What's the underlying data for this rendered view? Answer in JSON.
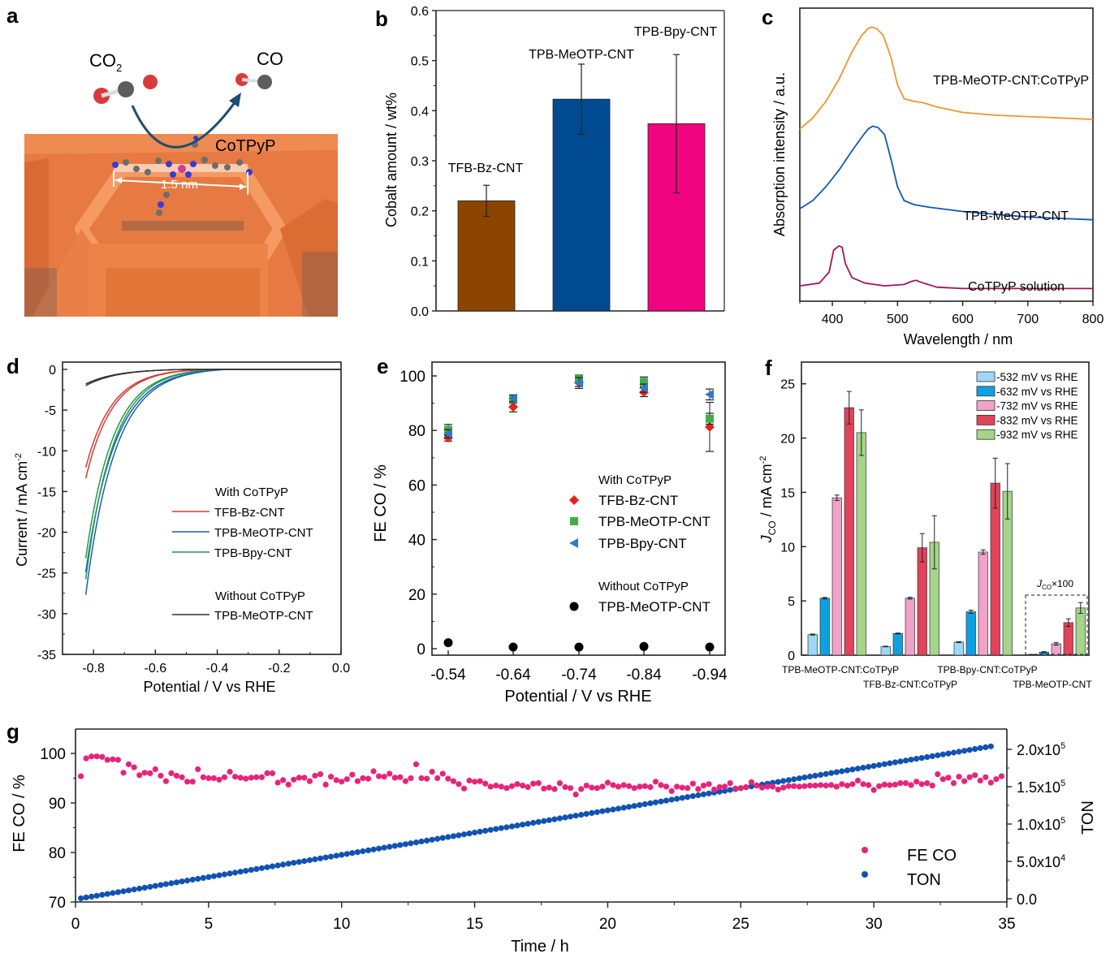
{
  "panel_letters": {
    "a": "a",
    "b": "b",
    "c": "c",
    "d": "d",
    "e": "e",
    "f": "f",
    "g": "g"
  },
  "illustration": {
    "reactant": "CO",
    "reactant_sub": "2",
    "product": "CO",
    "catalyst": "CoTPyP",
    "scale": "1.5 nm",
    "colors": {
      "framework": "#e8743a",
      "framework_dark": "#c9561f",
      "oxygen": "#d93b3b",
      "carbon": "#5c5c5c",
      "arrow": "#1d4e6b"
    }
  },
  "chart_data": [
    {
      "id": "b",
      "type": "bar",
      "title": "",
      "xlabel": "",
      "ylabel": "Cobalt amount / wt%",
      "ylim": [
        0,
        0.6
      ],
      "yticks": [
        "0.0",
        "0.1",
        "0.2",
        "0.3",
        "0.4",
        "0.5",
        "0.6"
      ],
      "categories": [
        "TFB-Bz-CNT",
        "TPB-MeOTP-CNT",
        "TPB-Bpy-CNT"
      ],
      "values": [
        0.22,
        0.423,
        0.374
      ],
      "errors": [
        0.031,
        0.07,
        0.138
      ],
      "colors": [
        "#8b4500",
        "#004a91",
        "#f0047f"
      ],
      "grid": false
    },
    {
      "id": "c",
      "type": "line",
      "xlabel": "Wavelength / nm",
      "ylabel": "Absorption intensity / a.u.",
      "xlim": [
        350,
        800
      ],
      "xticks": [
        "400",
        "500",
        "600",
        "700",
        "800"
      ],
      "series": [
        {
          "name": "TPB-MeOTP-CNT:CoTPyP",
          "color": "#f0952a",
          "x": [
            350,
            370,
            390,
            410,
            430,
            445,
            455,
            460,
            468,
            478,
            490,
            500,
            510,
            525,
            540,
            560,
            600,
            650,
            700,
            750,
            800
          ],
          "y": [
            0.62,
            0.66,
            0.72,
            0.8,
            0.9,
            0.96,
            0.985,
            0.99,
            0.985,
            0.96,
            0.88,
            0.78,
            0.73,
            0.72,
            0.715,
            0.7,
            0.68,
            0.67,
            0.665,
            0.66,
            0.655
          ]
        },
        {
          "name": "TPB-MeOTP-CNT",
          "color": "#1158b0",
          "x": [
            350,
            370,
            390,
            410,
            430,
            445,
            455,
            462,
            470,
            480,
            490,
            500,
            510,
            525,
            550,
            600,
            650,
            700,
            750,
            800
          ],
          "y": [
            0.33,
            0.36,
            0.41,
            0.47,
            0.54,
            0.59,
            0.62,
            0.63,
            0.625,
            0.6,
            0.51,
            0.41,
            0.36,
            0.345,
            0.335,
            0.32,
            0.31,
            0.3,
            0.295,
            0.29
          ]
        },
        {
          "name": "CoTPyP solution",
          "color": "#a3145b",
          "x": [
            350,
            380,
            395,
            402,
            410,
            415,
            420,
            430,
            450,
            480,
            510,
            520,
            528,
            540,
            560,
            600,
            700,
            800
          ],
          "y": [
            0.05,
            0.06,
            0.1,
            0.18,
            0.195,
            0.19,
            0.13,
            0.08,
            0.06,
            0.05,
            0.055,
            0.065,
            0.07,
            0.06,
            0.045,
            0.04,
            0.04,
            0.04
          ]
        }
      ],
      "annotations": [
        "TPB-MeOTP-CNT:CoTPyP",
        "TPB-MeOTP-CNT",
        "CoTPyP solution"
      ],
      "grid": false
    },
    {
      "id": "d",
      "type": "line",
      "xlabel": "Potential / V vs RHE",
      "ylabel": "Current / mA cm",
      "ylabel_sup": "-2",
      "xlim": [
        -0.9,
        0.0
      ],
      "ylim": [
        -35,
        0
      ],
      "xticks": [
        "-0.8",
        "-0.6",
        "-0.4",
        "-0.2",
        "0.0"
      ],
      "yticks": [
        "0",
        "-5",
        "-10",
        "-15",
        "-20",
        "-25",
        "-30",
        "-35"
      ],
      "legend": {
        "group1": "With CoTPyP",
        "group2": "Without CoTPyP"
      },
      "series": [
        {
          "name": "TFB-Bz-CNT",
          "group": "With CoTPyP",
          "color": "#d63a3a",
          "onset": -0.43,
          "end_current": -14.2,
          "tau": 0.085
        },
        {
          "name": "TPB-MeOTP-CNT",
          "group": "With CoTPyP",
          "color": "#1a5fb4",
          "onset": -0.37,
          "end_current": -29.2,
          "tau": 0.095
        },
        {
          "name": "TPB-Bpy-CNT",
          "group": "With CoTPyP",
          "color": "#22994a",
          "onset": -0.4,
          "end_current": -27.3,
          "tau": 0.088
        },
        {
          "name": "TPB-MeOTP-CNT",
          "group": "Without CoTPyP",
          "color": "#333333",
          "onset": -0.5,
          "end_current": -2.1,
          "tau": 0.1
        }
      ],
      "x_end": -0.83,
      "grid": false
    },
    {
      "id": "e",
      "type": "scatter",
      "xlabel": "Potential / V vs RHE",
      "ylabel": "FE CO / %",
      "ylim": [
        -5,
        105
      ],
      "yticks": [
        "0",
        "20",
        "40",
        "60",
        "80",
        "100"
      ],
      "categories": [
        "-0.54",
        "-0.64",
        "-0.74",
        "-0.84",
        "-0.94"
      ],
      "legend": {
        "group1": "With CoTPyP",
        "group2": "Without CoTPyP"
      },
      "series": [
        {
          "name": "TFB-Bz-CNT",
          "group": "With CoTPyP",
          "marker": "diamond",
          "color": "#e8231f",
          "values": [
            77.3,
            88.6,
            97.6,
            94.0,
            81.3
          ],
          "errors": [
            1.2,
            1.8,
            1.5,
            1.6,
            9.0
          ]
        },
        {
          "name": "TPB-MeOTP-CNT",
          "group": "With CoTPyP",
          "marker": "square",
          "color": "#3fae49",
          "values": [
            80.2,
            91.5,
            98.8,
            97.8,
            84.3
          ],
          "errors": [
            2.0,
            1.5,
            1.5,
            1.8,
            2.0
          ]
        },
        {
          "name": "TPB-Bpy-CNT",
          "group": "With CoTPyP",
          "marker": "triangle-left",
          "color": "#2e7ac9",
          "values": [
            78.8,
            91.8,
            97.4,
            95.5,
            93.2
          ],
          "errors": [
            1.5,
            1.2,
            2.0,
            1.5,
            2.0
          ]
        },
        {
          "name": "TPB-MeOTP-CNT",
          "group": "Without CoTPyP",
          "marker": "circle",
          "color": "#000000",
          "values": [
            2.2,
            0.6,
            0.6,
            0.8,
            0.6
          ],
          "errors": [
            0,
            0,
            0,
            0,
            0
          ]
        }
      ],
      "grid": false
    },
    {
      "id": "f",
      "type": "bar",
      "ylabel": "J",
      "ylabel_sub": "CO",
      "ylabel_rest": " / mA cm",
      "ylabel_sup": "-2",
      "ylim": [
        0,
        27
      ],
      "yticks": [
        "0",
        "5",
        "10",
        "15",
        "20",
        "25"
      ],
      "categories": [
        "TPB-MeOTP-CNT:CoTPyP",
        "TFB-Bz-CNT:CoTPyP",
        "TPB-Bpy-CNT:CoTPyP",
        "TPB-MeOTP-CNT"
      ],
      "series": [
        {
          "name": "-532 mV vs RHE",
          "color": "#9fd8f5",
          "values": [
            1.9,
            0.8,
            1.2,
            0.05
          ],
          "errors": [
            0.05,
            0.03,
            0.04,
            0.02
          ]
        },
        {
          "name": "-632 mV vs RHE",
          "color": "#0fa0e0",
          "values": [
            5.25,
            2.0,
            4.0,
            0.28
          ],
          "errors": [
            0.07,
            0.04,
            0.15,
            0.04
          ]
        },
        {
          "name": "-732 mV vs RHE",
          "color": "#f0a2c8",
          "values": [
            14.5,
            5.25,
            9.5,
            1.05
          ],
          "errors": [
            0.25,
            0.08,
            0.2,
            0.12
          ]
        },
        {
          "name": "-832 mV vs RHE",
          "color": "#e0435a",
          "values": [
            22.8,
            9.9,
            15.85,
            3.0
          ],
          "errors": [
            1.5,
            1.3,
            2.3,
            0.35
          ]
        },
        {
          "name": "-932 mV vs RHE",
          "color": "#a5d48a",
          "values": [
            20.5,
            10.4,
            15.1,
            4.35
          ],
          "errors": [
            2.1,
            2.45,
            2.55,
            0.5
          ]
        }
      ],
      "inset_annotation": {
        "main": "J",
        "sub": "CO",
        "rest": "×100"
      },
      "grid": false
    },
    {
      "id": "g",
      "type": "scatter",
      "xlabel": "Time / h",
      "ylabel": "FE CO / %",
      "ylabel_right": "TON",
      "xlim": [
        0,
        35
      ],
      "ylim": [
        70,
        105
      ],
      "ylim_right": [
        -5000,
        220000
      ],
      "xticks": [
        "0",
        "5",
        "10",
        "15",
        "20",
        "25",
        "30",
        "35"
      ],
      "yticks": [
        "70",
        "80",
        "90",
        "100"
      ],
      "yticks_right": [
        {
          "mant": "0.0",
          "exp": ""
        },
        {
          "mant": "5.0x10",
          "exp": "4"
        },
        {
          "mant": "1.0x10",
          "exp": "5"
        },
        {
          "mant": "1.5x10",
          "exp": "5"
        },
        {
          "mant": "2.0x10",
          "exp": "5"
        }
      ],
      "legend": [
        "FE CO",
        "TON"
      ],
      "series": [
        {
          "name": "FE CO",
          "color": "#e8237a",
          "t_start": 0.2,
          "t_step": 0.2,
          "values": [
            95.4,
            99.0,
            99.4,
            99.4,
            99.3,
            98.7,
            98.8,
            98.7,
            96.1,
            97.8,
            97.2,
            95.6,
            96.1,
            96.0,
            96.8,
            95.5,
            94.4,
            96.0,
            95.5,
            95.2,
            94.3,
            94.3,
            96.8,
            95.2,
            95.0,
            95.0,
            94.7,
            95.2,
            96.3,
            95.3,
            95.1,
            94.9,
            95.1,
            95.2,
            95.2,
            96.0,
            96.0,
            94.1,
            94.6,
            93.7,
            94.7,
            95.1,
            95.1,
            94.4,
            95.5,
            95.8,
            93.7,
            95.3,
            94.6,
            94.3,
            94.8,
            95.7,
            94.4,
            95.0,
            94.9,
            96.4,
            95.4,
            95.3,
            95.9,
            95.1,
            95.2,
            94.4,
            95.0,
            97.8,
            95.0,
            94.9,
            96.3,
            95.0,
            95.9,
            94.9,
            94.4,
            93.8,
            92.9,
            94.5,
            94.3,
            94.4,
            93.9,
            93.3,
            93.5,
            93.3,
            93.0,
            93.4,
            93.8,
            93.5,
            93.2,
            93.9,
            94.0,
            92.9,
            93.1,
            92.8,
            94.0,
            93.2,
            93.0,
            91.7,
            92.8,
            93.5,
            93.1,
            93.0,
            93.3,
            94.1,
            93.6,
            93.3,
            93.6,
            93.4,
            93.0,
            93.3,
            93.4,
            93.2,
            94.3,
            93.6,
            93.3,
            92.4,
            93.3,
            93.1,
            93.0,
            93.9,
            92.8,
            93.5,
            93.8,
            92.7,
            93.2,
            93.3,
            94.0,
            92.9,
            93.0,
            93.2,
            94.2,
            93.5,
            93.1,
            93.3,
            93.3,
            92.7,
            93.1,
            93.4,
            93.4,
            93.3,
            93.4,
            93.5,
            93.5,
            93.6,
            93.5,
            93.6,
            93.3,
            93.8,
            93.5,
            93.8,
            94.5,
            93.8,
            93.6,
            92.6,
            93.4,
            93.7,
            93.6,
            93.7,
            94.0,
            94.0,
            93.6,
            94.3,
            93.8,
            94.0,
            93.5,
            95.8,
            94.8,
            95.1,
            94.0,
            95.3,
            94.4,
            95.2,
            95.6,
            94.5,
            95.2,
            94.1,
            94.8,
            95.4
          ]
        },
        {
          "name": "TON",
          "color": "#1053b0",
          "t_start": 0.2,
          "t_end": 34.4,
          "ton_start": 500,
          "ton_end": 204000
        }
      ],
      "grid": false
    }
  ]
}
